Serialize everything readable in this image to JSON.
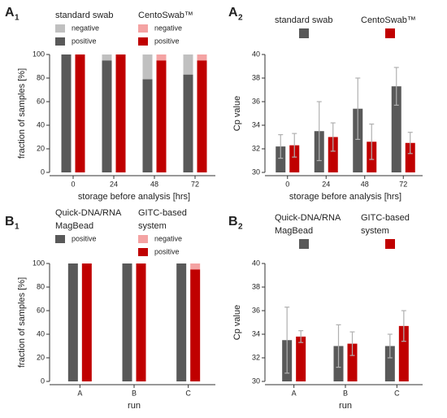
{
  "chart_data": [
    {
      "type": "stacked_bar",
      "panel": {
        "letter": "A",
        "index": "1"
      },
      "y_label": "fraction of samples [%]",
      "x_label": "storage before analysis [hrs]",
      "categories": [
        "0",
        "24",
        "48",
        "72"
      ],
      "ylim": [
        0,
        100
      ],
      "yticks": [
        0,
        20,
        40,
        60,
        80,
        100
      ],
      "groups": [
        {
          "name": "standard swab",
          "series": [
            {
              "name": "negative",
              "color": "#c0c0c0",
              "values": [
                0,
                5,
                21,
                17
              ]
            },
            {
              "name": "positive",
              "color": "#595959",
              "values": [
                100,
                95,
                79,
                83
              ]
            }
          ]
        },
        {
          "name": "CentoSwab™",
          "series": [
            {
              "name": "negative",
              "color": "#f4a3a3",
              "values": [
                0,
                0,
                5,
                5
              ]
            },
            {
              "name": "positive",
              "color": "#c00000",
              "values": [
                100,
                100,
                95,
                95
              ]
            }
          ]
        }
      ]
    },
    {
      "type": "bar",
      "panel": {
        "letter": "A",
        "index": "2"
      },
      "y_label": "Cp value",
      "x_label": "storage before analysis [hrs]",
      "categories": [
        "0",
        "24",
        "48",
        "72"
      ],
      "ylim": [
        30,
        40
      ],
      "yticks": [
        30,
        32,
        34,
        36,
        38,
        40
      ],
      "series": [
        {
          "name": "standard swab",
          "color": "#595959",
          "values": [
            32.2,
            33.5,
            35.4,
            37.3
          ],
          "errors": [
            1.0,
            2.5,
            2.6,
            1.6
          ]
        },
        {
          "name": "CentoSwab™",
          "color": "#c00000",
          "values": [
            32.3,
            33.0,
            32.6,
            32.5
          ],
          "errors": [
            1.0,
            1.2,
            1.5,
            0.9
          ]
        }
      ]
    },
    {
      "type": "stacked_bar",
      "panel": {
        "letter": "B",
        "index": "1"
      },
      "y_label": "fraction of samples [%]",
      "x_label": "run",
      "categories": [
        "A",
        "B",
        "C"
      ],
      "ylim": [
        0,
        100
      ],
      "yticks": [
        0,
        20,
        40,
        60,
        80,
        100
      ],
      "groups": [
        {
          "name": [
            "Quick-DNA/RNA",
            "MagBead"
          ],
          "series": [
            {
              "name": "positive",
              "color": "#595959",
              "values": [
                100,
                100,
                100
              ]
            }
          ]
        },
        {
          "name": [
            "GITC-based",
            "system"
          ],
          "series": [
            {
              "name": "negative",
              "color": "#f4a3a3",
              "values": [
                0,
                0,
                5
              ]
            },
            {
              "name": "positive",
              "color": "#c00000",
              "values": [
                100,
                100,
                95
              ]
            }
          ]
        }
      ]
    },
    {
      "type": "bar",
      "panel": {
        "letter": "B",
        "index": "2"
      },
      "y_label": "Cp value",
      "x_label": "run",
      "categories": [
        "A",
        "B",
        "C"
      ],
      "ylim": [
        30,
        40
      ],
      "yticks": [
        30,
        32,
        34,
        36,
        38,
        40
      ],
      "series": [
        {
          "name": [
            "Quick-DNA/RNA",
            "MagBead"
          ],
          "color": "#595959",
          "values": [
            33.5,
            33.0,
            33.0
          ],
          "errors": [
            2.8,
            1.8,
            1.0
          ]
        },
        {
          "name": [
            "GITC-based",
            "system"
          ],
          "color": "#c00000",
          "values": [
            33.8,
            33.2,
            34.7
          ],
          "errors": [
            0.5,
            1.0,
            1.3
          ]
        }
      ]
    }
  ]
}
